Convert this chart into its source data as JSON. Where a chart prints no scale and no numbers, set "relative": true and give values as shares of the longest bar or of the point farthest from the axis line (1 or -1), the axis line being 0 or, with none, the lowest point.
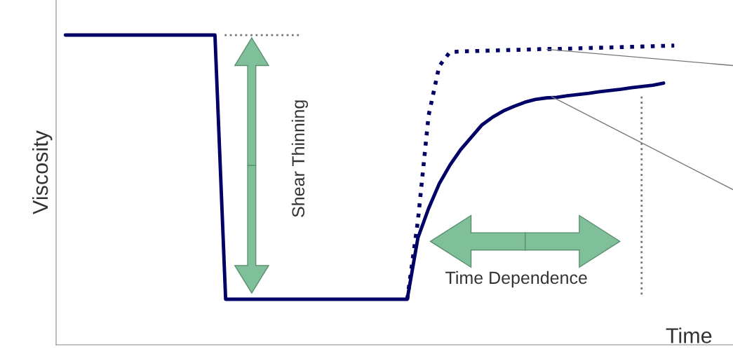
{
  "chart_data": {
    "type": "line",
    "relative": true,
    "xlabel": "Time",
    "ylabel": "Viscosity",
    "legend": false,
    "annotations": [
      "Shear Thinning",
      "Time Dependence"
    ],
    "categories": [
      null,
      null,
      null,
      null,
      null,
      null,
      null,
      null,
      null,
      null,
      null,
      null,
      null,
      null,
      null,
      null,
      null,
      null,
      null,
      null,
      null,
      null,
      null,
      null,
      null,
      null,
      null,
      null,
      null,
      null,
      null,
      null,
      null,
      null,
      null,
      null,
      null,
      null,
      null,
      null,
      null,
      null,
      null,
      null,
      null,
      null,
      null,
      null,
      null,
      null,
      null,
      null,
      null,
      null,
      null,
      null,
      null,
      null
    ],
    "series": [
      {
        "color": "#000066",
        "line_style": "solid",
        "values": [
          1.0,
          1.0,
          1.0,
          1.0,
          1.0,
          1.0,
          1.0,
          1.0,
          1.0,
          1.0,
          1.0,
          1.0,
          1.0,
          1.0,
          1.0,
          0.147,
          0.147,
          0.147,
          0.147,
          0.147,
          0.147,
          0.147,
          0.147,
          0.147,
          0.147,
          0.147,
          0.147,
          0.147,
          0.147,
          0.147,
          0.147,
          0.147,
          0.147,
          0.345,
          0.44,
          0.52,
          0.58,
          0.63,
          0.67,
          0.71,
          0.735,
          0.755,
          0.77,
          0.783,
          0.792,
          0.797,
          0.799,
          0.804,
          0.808,
          0.812,
          0.817,
          0.821,
          0.825,
          0.83,
          0.834,
          0.838,
          0.845,
          null
        ]
      },
      {
        "color": "#000066",
        "line_style": "dotted",
        "values": [
          null,
          null,
          null,
          null,
          null,
          null,
          null,
          null,
          null,
          null,
          null,
          null,
          null,
          null,
          null,
          null,
          null,
          null,
          null,
          null,
          null,
          null,
          null,
          null,
          null,
          null,
          null,
          null,
          null,
          null,
          null,
          null,
          0.147,
          0.4,
          0.74,
          0.9,
          0.945,
          0.947,
          0.948,
          0.949,
          0.95,
          0.951,
          0.952,
          0.953,
          0.954,
          0.955,
          0.955,
          0.956,
          0.957,
          0.958,
          0.959,
          0.96,
          0.961,
          0.962,
          0.963,
          0.964,
          0.965,
          0.966
        ]
      }
    ]
  }
}
